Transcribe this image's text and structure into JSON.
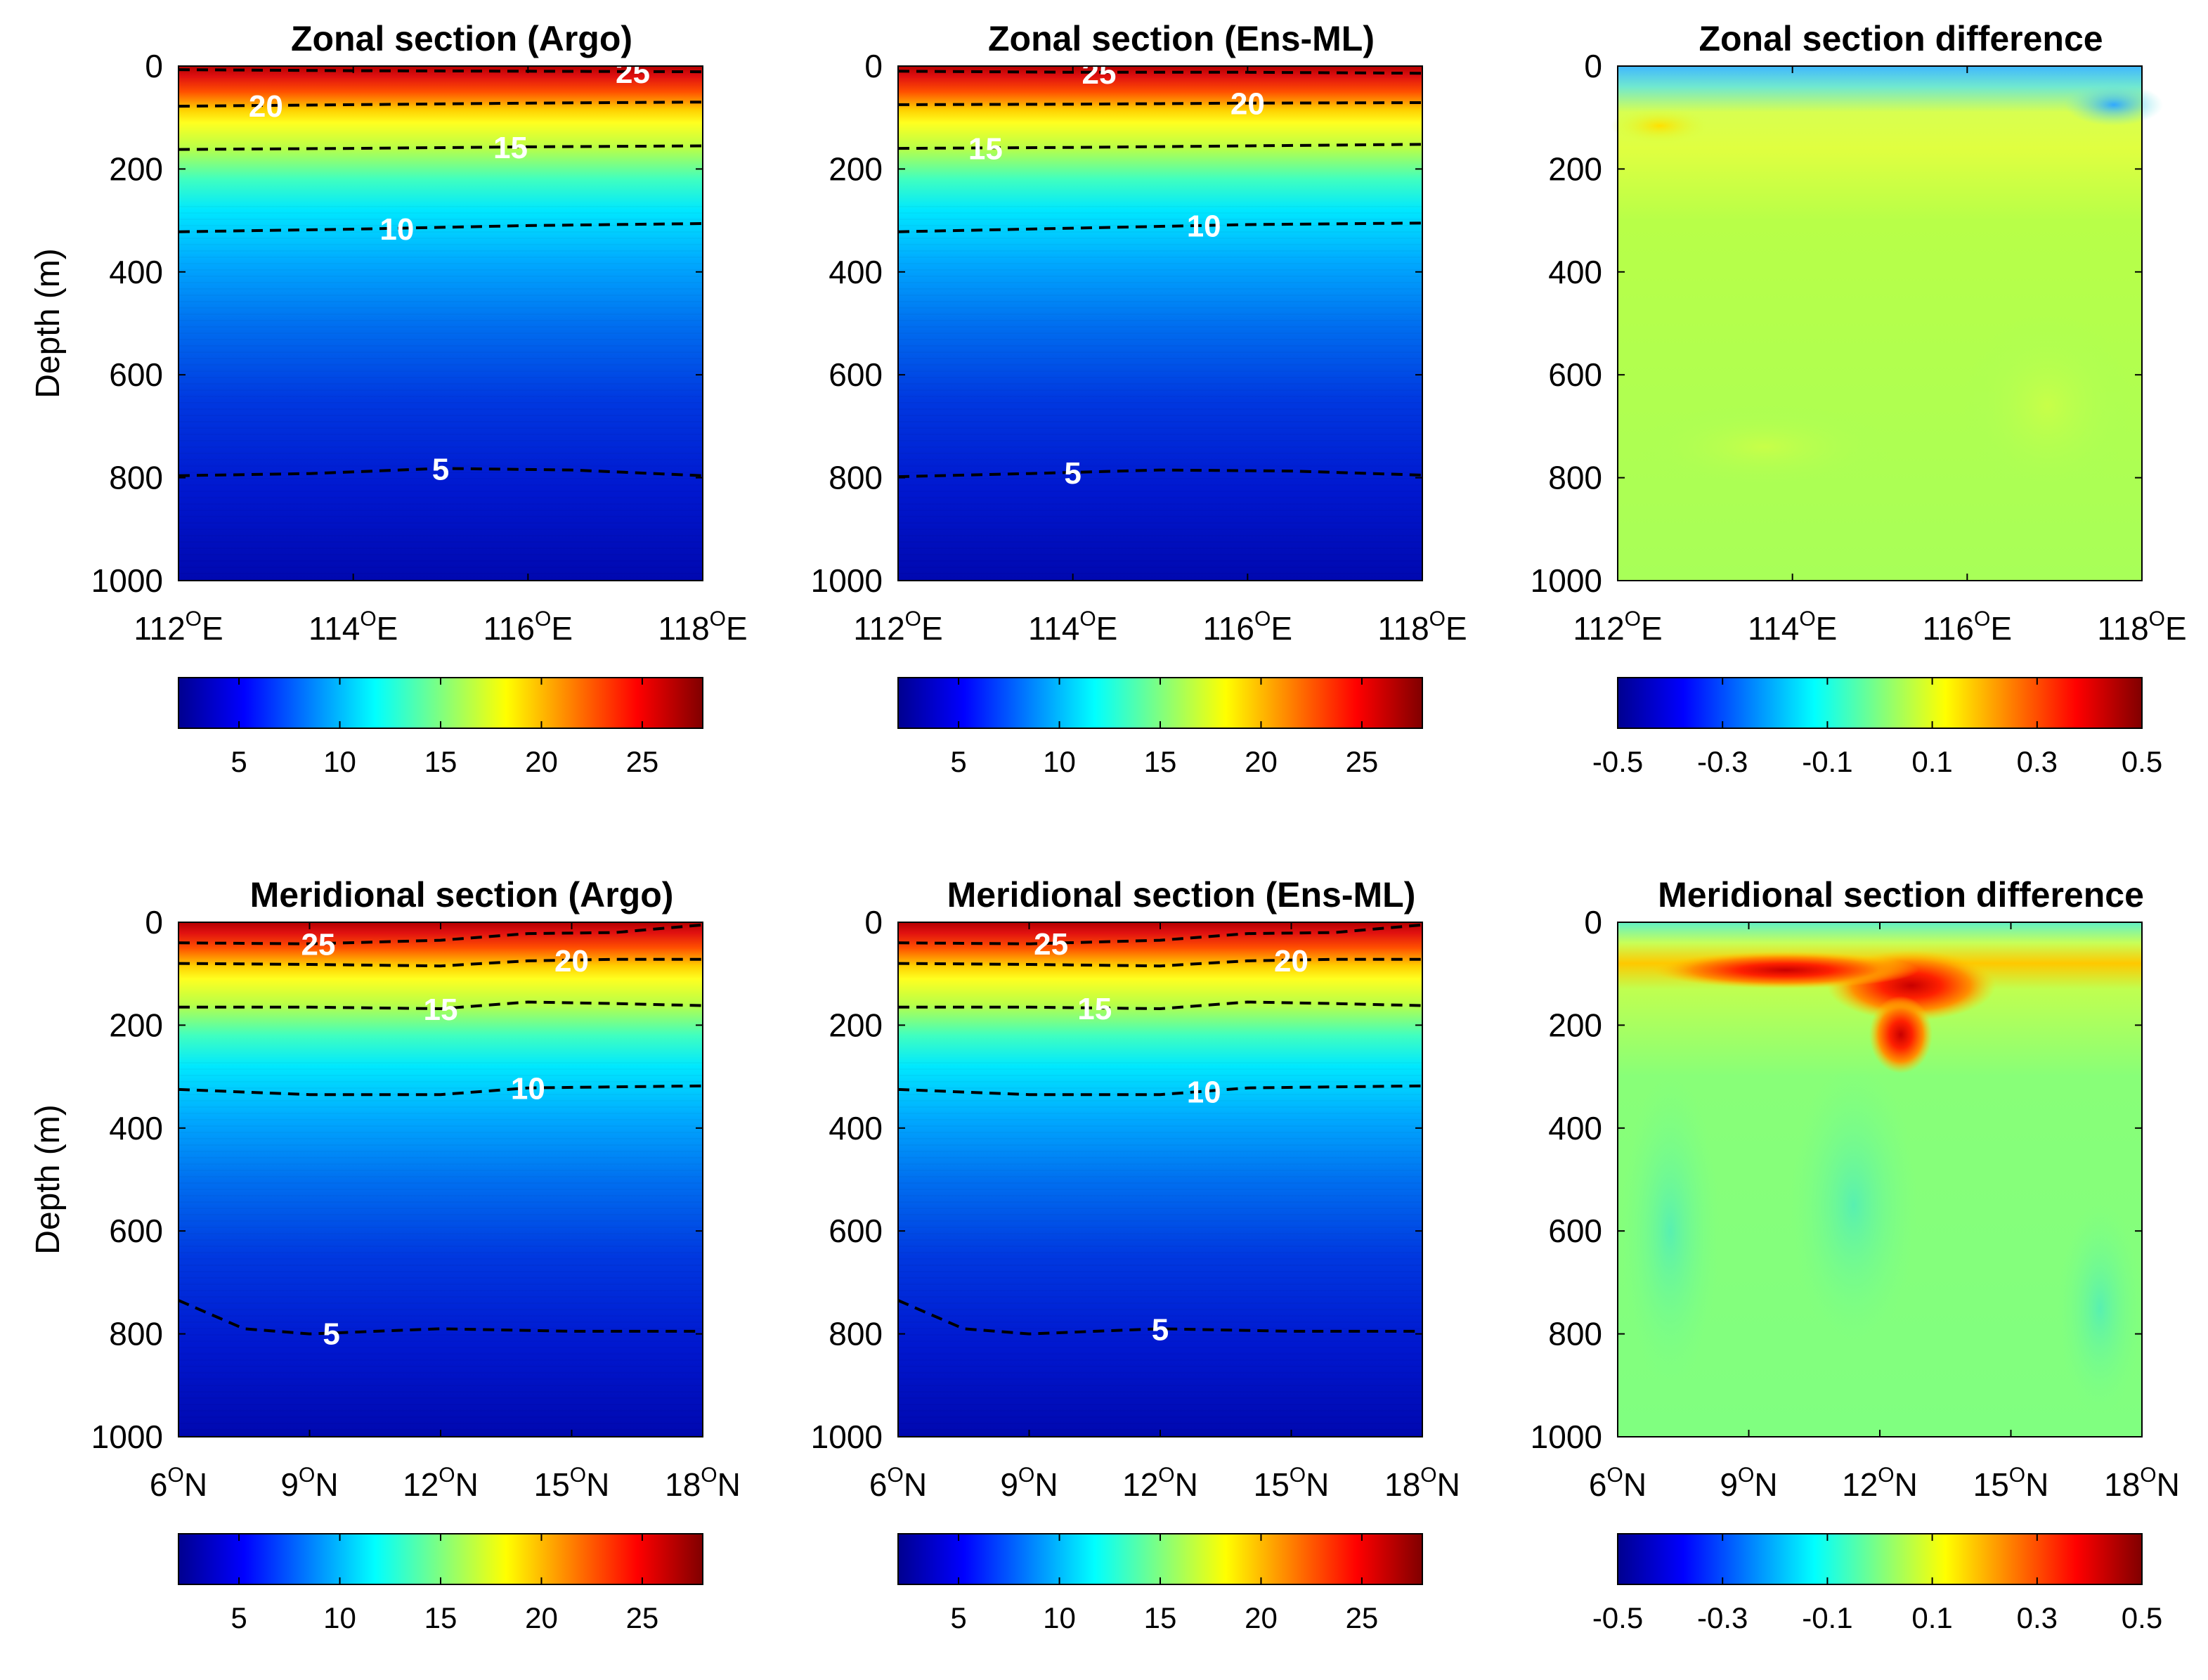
{
  "figure": {
    "ylabel": "Depth (m)",
    "colorbar_temp_ticks": [
      "5",
      "10",
      "15",
      "20",
      "25"
    ],
    "colorbar_diff_ticks": [
      "-0.5",
      "-0.3",
      "-0.1",
      "0.1",
      "0.3",
      "0.5"
    ]
  },
  "chart_data": [
    {
      "type": "heatmap",
      "title": "Zonal section (Argo)",
      "ylabel": "Depth (m)",
      "ylim": [
        0,
        1000
      ],
      "yticks": [
        "0",
        "200",
        "400",
        "600",
        "800",
        "1000"
      ],
      "xlim": [
        112,
        118
      ],
      "xticks": [
        {
          "num": "112",
          "sup": "O",
          "suffix": "E"
        },
        {
          "num": "114",
          "sup": "O",
          "suffix": "E"
        },
        {
          "num": "116",
          "sup": "O",
          "suffix": "E"
        },
        {
          "num": "118",
          "sup": "O",
          "suffix": "E"
        }
      ],
      "colorbar_range": [
        2,
        28
      ],
      "contours": [
        {
          "level": "25",
          "x": [
            112,
            114,
            116,
            118
          ],
          "depth": [
            7,
            9,
            10,
            11
          ],
          "label_x": 117.2
        },
        {
          "level": "20",
          "x": [
            112,
            114,
            116,
            118
          ],
          "depth": [
            78,
            75,
            72,
            70
          ],
          "label_x": 113
        },
        {
          "level": "15",
          "x": [
            112,
            114,
            116,
            118
          ],
          "depth": [
            162,
            160,
            157,
            155
          ],
          "label_x": 115.8
        },
        {
          "level": "10",
          "x": [
            112,
            114,
            116,
            118
          ],
          "depth": [
            322,
            317,
            310,
            306
          ],
          "label_x": 114.5
        },
        {
          "level": "5",
          "x": [
            112,
            113.5,
            115,
            116.5,
            118
          ],
          "depth": [
            796,
            792,
            782,
            785,
            796
          ],
          "label_x": 115
        }
      ]
    },
    {
      "type": "heatmap",
      "title": "Zonal section (Ens-ML)",
      "ylabel": "",
      "ylim": [
        0,
        1000
      ],
      "yticks": [
        "0",
        "200",
        "400",
        "600",
        "800",
        "1000"
      ],
      "xlim": [
        112,
        118
      ],
      "xticks": [
        {
          "num": "112",
          "sup": "O",
          "suffix": "E"
        },
        {
          "num": "114",
          "sup": "O",
          "suffix": "E"
        },
        {
          "num": "116",
          "sup": "O",
          "suffix": "E"
        },
        {
          "num": "118",
          "sup": "O",
          "suffix": "E"
        }
      ],
      "colorbar_range": [
        2,
        28
      ],
      "contours": [
        {
          "level": "25",
          "x": [
            112,
            114,
            116,
            118
          ],
          "depth": [
            10,
            12,
            12,
            14
          ],
          "label_x": 114.3
        },
        {
          "level": "20",
          "x": [
            112,
            114,
            116,
            118
          ],
          "depth": [
            75,
            74,
            72,
            71
          ],
          "label_x": 116
        },
        {
          "level": "15",
          "x": [
            112,
            114,
            116,
            118
          ],
          "depth": [
            160,
            158,
            155,
            152
          ],
          "label_x": 113
        },
        {
          "level": "10",
          "x": [
            112,
            114,
            116,
            118
          ],
          "depth": [
            322,
            315,
            308,
            305
          ],
          "label_x": 115.5
        },
        {
          "level": "5",
          "x": [
            112,
            113.5,
            115,
            116.5,
            118
          ],
          "depth": [
            798,
            792,
            785,
            787,
            795
          ],
          "label_x": 114
        }
      ]
    },
    {
      "type": "heatmap",
      "title": "Zonal section difference",
      "ylabel": "",
      "ylim": [
        0,
        1000
      ],
      "yticks": [
        "0",
        "200",
        "400",
        "600",
        "800",
        "1000"
      ],
      "xlim": [
        112,
        118
      ],
      "xticks": [
        {
          "num": "112",
          "sup": "O",
          "suffix": "E"
        },
        {
          "num": "114",
          "sup": "O",
          "suffix": "E"
        },
        {
          "num": "116",
          "sup": "O",
          "suffix": "E"
        },
        {
          "num": "118",
          "sup": "O",
          "suffix": "E"
        }
      ],
      "colorbar_range": [
        -0.5,
        0.5
      ],
      "contours": []
    },
    {
      "type": "heatmap",
      "title": "Meridional section (Argo)",
      "ylabel": "Depth (m)",
      "ylim": [
        0,
        1000
      ],
      "yticks": [
        "0",
        "200",
        "400",
        "600",
        "800",
        "1000"
      ],
      "xlim": [
        6,
        18
      ],
      "xticks": [
        {
          "num": "6",
          "sup": "O",
          "suffix": "N"
        },
        {
          "num": "9",
          "sup": "O",
          "suffix": "N"
        },
        {
          "num": "12",
          "sup": "O",
          "suffix": "N"
        },
        {
          "num": "15",
          "sup": "O",
          "suffix": "N"
        },
        {
          "num": "18",
          "sup": "O",
          "suffix": "N"
        }
      ],
      "colorbar_range": [
        2,
        28
      ],
      "contours": [
        {
          "level": "25",
          "x": [
            6,
            9,
            12,
            14,
            16,
            18
          ],
          "depth": [
            40,
            42,
            35,
            22,
            20,
            5
          ],
          "label_x": 9.2
        },
        {
          "level": "20",
          "x": [
            6,
            9,
            12,
            14,
            16,
            18
          ],
          "depth": [
            80,
            82,
            85,
            75,
            72,
            72
          ],
          "label_x": 15
        },
        {
          "level": "15",
          "x": [
            6,
            9,
            12,
            14,
            16,
            18
          ],
          "depth": [
            165,
            165,
            168,
            155,
            158,
            162
          ],
          "label_x": 12
        },
        {
          "level": "10",
          "x": [
            6,
            9,
            12,
            14,
            16,
            18
          ],
          "depth": [
            325,
            335,
            335,
            322,
            320,
            318
          ],
          "label_x": 14
        },
        {
          "level": "5",
          "x": [
            6,
            7.5,
            9,
            12,
            15,
            18
          ],
          "depth": [
            735,
            790,
            800,
            790,
            795,
            795
          ],
          "label_x": 9.5
        }
      ]
    },
    {
      "type": "heatmap",
      "title": "Meridional section (Ens-ML)",
      "ylabel": "",
      "ylim": [
        0,
        1000
      ],
      "yticks": [
        "0",
        "200",
        "400",
        "600",
        "800",
        "1000"
      ],
      "xlim": [
        6,
        18
      ],
      "xticks": [
        {
          "num": "6",
          "sup": "O",
          "suffix": "N"
        },
        {
          "num": "9",
          "sup": "O",
          "suffix": "N"
        },
        {
          "num": "12",
          "sup": "O",
          "suffix": "N"
        },
        {
          "num": "15",
          "sup": "O",
          "suffix": "N"
        },
        {
          "num": "18",
          "sup": "O",
          "suffix": "N"
        }
      ],
      "colorbar_range": [
        2,
        28
      ],
      "contours": [
        {
          "level": "25",
          "x": [
            6,
            9,
            12,
            14,
            16,
            18
          ],
          "depth": [
            40,
            42,
            35,
            22,
            20,
            5
          ],
          "label_x": 9.5
        },
        {
          "level": "20",
          "x": [
            6,
            9,
            12,
            14,
            16,
            18
          ],
          "depth": [
            80,
            82,
            85,
            75,
            72,
            72
          ],
          "label_x": 15
        },
        {
          "level": "15",
          "x": [
            6,
            9,
            12,
            14,
            16,
            18
          ],
          "depth": [
            165,
            165,
            168,
            155,
            158,
            162
          ],
          "label_x": 10.5
        },
        {
          "level": "10",
          "x": [
            6,
            9,
            12,
            14,
            16,
            18
          ],
          "depth": [
            325,
            335,
            335,
            322,
            320,
            318
          ],
          "label_x": 13
        },
        {
          "level": "5",
          "x": [
            6,
            7.5,
            9,
            12,
            15,
            18
          ],
          "depth": [
            735,
            790,
            800,
            790,
            795,
            795
          ],
          "label_x": 12
        }
      ]
    },
    {
      "type": "heatmap",
      "title": "Meridional section difference",
      "ylabel": "",
      "ylim": [
        0,
        1000
      ],
      "yticks": [
        "0",
        "200",
        "400",
        "600",
        "800",
        "1000"
      ],
      "xlim": [
        6,
        18
      ],
      "xticks": [
        {
          "num": "6",
          "sup": "O",
          "suffix": "N"
        },
        {
          "num": "9",
          "sup": "O",
          "suffix": "N"
        },
        {
          "num": "12",
          "sup": "O",
          "suffix": "N"
        },
        {
          "num": "15",
          "sup": "O",
          "suffix": "N"
        },
        {
          "num": "18",
          "sup": "O",
          "suffix": "N"
        }
      ],
      "colorbar_range": [
        -0.5,
        0.5
      ],
      "contours": []
    }
  ]
}
